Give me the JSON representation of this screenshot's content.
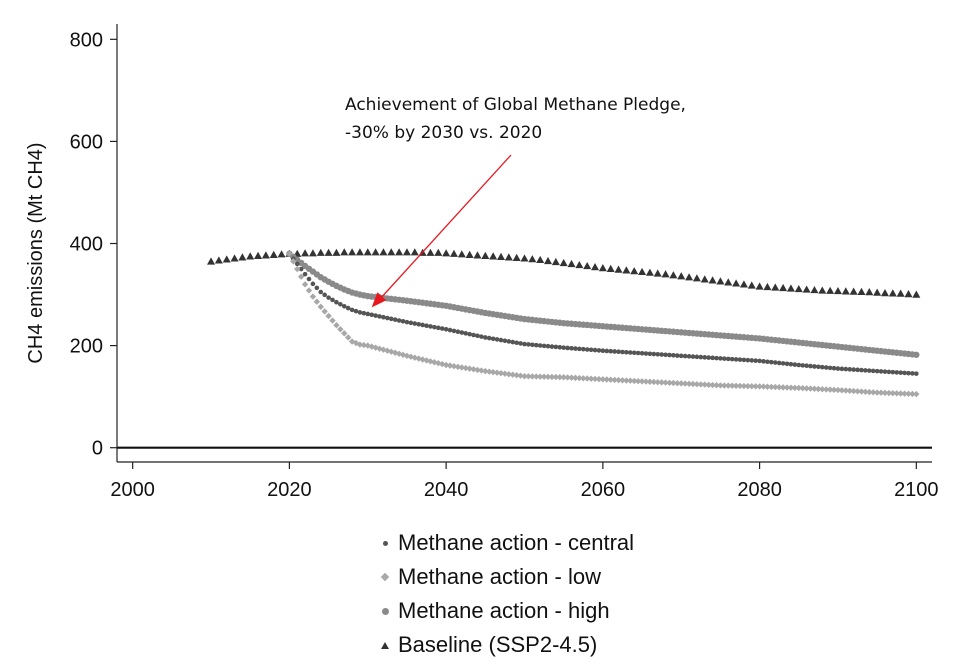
{
  "chart_data": {
    "type": "scatter",
    "xlabel": "",
    "ylabel": "CH4 emissions (Mt CH4)",
    "xlim": [
      1998,
      2102
    ],
    "ylim": [
      -28,
      830
    ],
    "xticks": [
      2000,
      2020,
      2040,
      2060,
      2080,
      2100
    ],
    "yticks": [
      0,
      200,
      400,
      600,
      800
    ],
    "grid": false,
    "legend_position": "bottom",
    "annotation": {
      "lines": [
        "Achievement of Global Methane Pledge,",
        "-30% by 2030 vs. 2020"
      ],
      "arrow_color": "#e8171f",
      "arrow_target": {
        "x": 2030.5,
        "y": 275
      }
    },
    "series": [
      {
        "name": "Methane action - central",
        "marker": "dot-small",
        "color": "#555555",
        "x": [
          2020,
          2021,
          2022,
          2023,
          2024,
          2025,
          2026,
          2027,
          2028,
          2029,
          2030,
          2035,
          2040,
          2045,
          2050,
          2055,
          2060,
          2065,
          2070,
          2075,
          2080,
          2085,
          2090,
          2095,
          2100
        ],
        "y": [
          380,
          360,
          340,
          321,
          305,
          294,
          285,
          277,
          270,
          265,
          262,
          246,
          232,
          216,
          203,
          196,
          190,
          185,
          180,
          175,
          170,
          162,
          155,
          150,
          145
        ]
      },
      {
        "name": "Methane action - low",
        "marker": "diamond",
        "color": "#a8a8a8",
        "x": [
          2020,
          2021,
          2022,
          2023,
          2024,
          2025,
          2026,
          2027,
          2028,
          2029,
          2030,
          2035,
          2040,
          2045,
          2050,
          2055,
          2060,
          2065,
          2070,
          2075,
          2080,
          2085,
          2090,
          2095,
          2100
        ],
        "y": [
          380,
          350,
          320,
          296,
          276,
          258,
          240,
          224,
          208,
          202,
          200,
          180,
          162,
          150,
          140,
          138,
          134,
          130,
          126,
          122,
          120,
          117,
          113,
          108,
          105
        ]
      },
      {
        "name": "Methane action - high",
        "marker": "dot-big",
        "color": "#8a8a8a",
        "x": [
          2020,
          2021,
          2022,
          2023,
          2024,
          2025,
          2026,
          2027,
          2028,
          2029,
          2030,
          2035,
          2040,
          2045,
          2050,
          2055,
          2060,
          2065,
          2070,
          2075,
          2080,
          2085,
          2090,
          2095,
          2100
        ],
        "y": [
          380,
          368,
          356,
          345,
          334,
          325,
          317,
          310,
          304,
          300,
          297,
          288,
          278,
          264,
          252,
          244,
          238,
          232,
          226,
          220,
          214,
          206,
          198,
          190,
          182
        ]
      },
      {
        "name": "Baseline (SSP2-4.5)",
        "marker": "triangle",
        "color": "#333333",
        "x": [
          2010,
          2011,
          2012,
          2013,
          2014,
          2015,
          2016,
          2017,
          2018,
          2019,
          2020,
          2021,
          2022,
          2023,
          2024,
          2025,
          2026,
          2027,
          2028,
          2029,
          2030,
          2031,
          2032,
          2033,
          2034,
          2035,
          2036,
          2037,
          2038,
          2039,
          2040,
          2042,
          2044,
          2046,
          2048,
          2050,
          2052,
          2054,
          2056,
          2058,
          2060,
          2062,
          2064,
          2066,
          2068,
          2070,
          2072,
          2074,
          2076,
          2078,
          2080,
          2082,
          2084,
          2086,
          2088,
          2090,
          2092,
          2094,
          2096,
          2098,
          2100
        ],
        "y": [
          365,
          367,
          369,
          371,
          373,
          375,
          376,
          377,
          378,
          379,
          380,
          380,
          381,
          381,
          382,
          382,
          382,
          383,
          383,
          383,
          383,
          383,
          383,
          383,
          383,
          383,
          383,
          382,
          382,
          382,
          381,
          379,
          377,
          375,
          373,
          371,
          368,
          364,
          360,
          356,
          352,
          349,
          346,
          343,
          340,
          336,
          332,
          328,
          324,
          320,
          316,
          314,
          312,
          310,
          308,
          307,
          306,
          305,
          303,
          302,
          300
        ]
      }
    ]
  }
}
